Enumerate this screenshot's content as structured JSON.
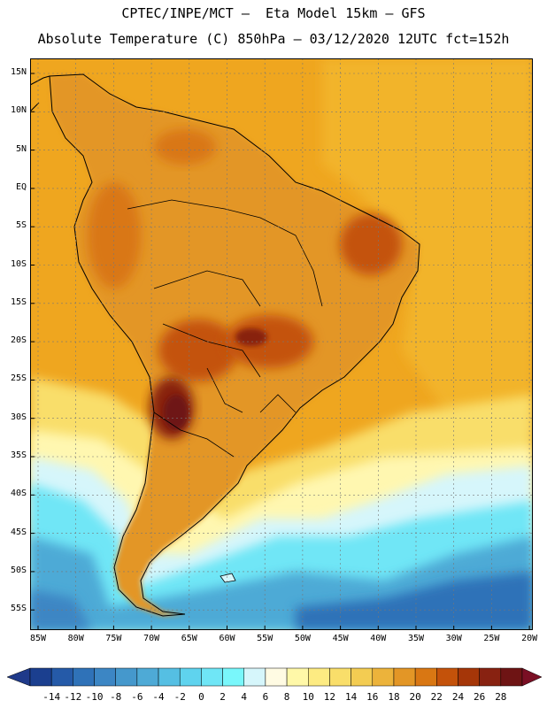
{
  "header": {
    "line1": "CPTEC/INPE/MCT –  Eta Model 15km – GFS",
    "line2": "Absolute Temperature (C) 850hPa – 03/12/2020 12UTC fct=152h"
  },
  "axes": {
    "lat_ticks": [
      "15N",
      "10N",
      "5N",
      "EQ",
      "5S",
      "10S",
      "15S",
      "20S",
      "25S",
      "30S",
      "35S",
      "40S",
      "45S",
      "50S",
      "55S"
    ],
    "lon_ticks": [
      "85W",
      "80W",
      "75W",
      "70W",
      "65W",
      "60W",
      "55W",
      "50W",
      "45W",
      "40W",
      "35W",
      "30W",
      "25W",
      "20W"
    ]
  },
  "colorbar": {
    "labels": [
      "-14",
      "-12",
      "-10",
      "-8",
      "-6",
      "-4",
      "-2",
      "0",
      "2",
      "4",
      "6",
      "8",
      "10",
      "12",
      "14",
      "16",
      "18",
      "20",
      "22",
      "24",
      "26",
      "28"
    ],
    "colors": [
      "#1b3f8f",
      "#255aa8",
      "#2f72b8",
      "#3c86c4",
      "#4598cc",
      "#4eaad6",
      "#55bfe3",
      "#5fd3ee",
      "#6fe6f6",
      "#79f7fb",
      "#d6f6fb",
      "#fffbe3",
      "#fff8a8",
      "#fdeb82",
      "#f9de6a",
      "#f3cc52",
      "#ecb33b",
      "#e39626",
      "#d97713",
      "#c4520a",
      "#a53608",
      "#882211",
      "#6e1414"
    ],
    "below_color": "#1f3a8a",
    "above_color": "#7a0f24"
  },
  "map": {
    "region": "South America",
    "background_color": "#f0a81e"
  }
}
